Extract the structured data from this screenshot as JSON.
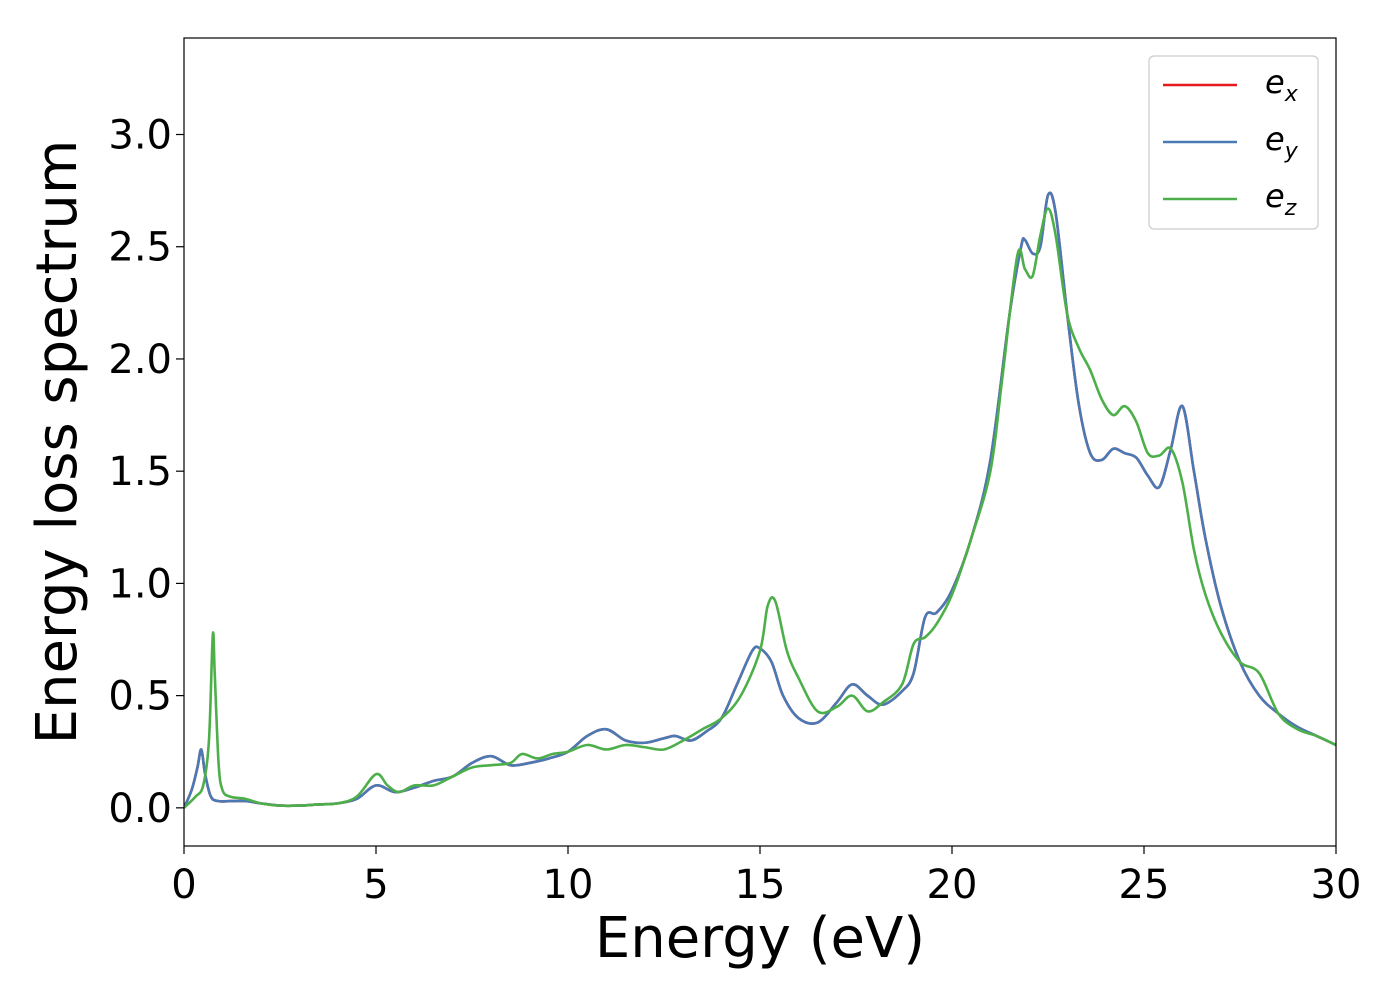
{
  "chart_data": {
    "type": "line",
    "xlabel": "Energy (eV)",
    "ylabel": "Energy loss spectrum",
    "xlim": [
      0,
      30
    ],
    "ylim": [
      -0.17,
      3.43
    ],
    "xticks": [
      0,
      5,
      10,
      15,
      20,
      25,
      30
    ],
    "xtick_labels": [
      "0",
      "5",
      "10",
      "15",
      "20",
      "25",
      "30"
    ],
    "yticks": [
      0.0,
      0.5,
      1.0,
      1.5,
      2.0,
      2.5,
      3.0
    ],
    "ytick_labels": [
      "0.0",
      "0.5",
      "1.0",
      "1.5",
      "2.0",
      "2.5",
      "3.0"
    ],
    "grid": false,
    "legend_position": "top-right",
    "series": [
      {
        "name": "e_x",
        "label_base": "e",
        "label_sub": "x",
        "color": "#e41a1c",
        "x": [
          0,
          0.2,
          0.35,
          0.45,
          0.55,
          0.7,
          0.9,
          1.2,
          1.6,
          2.0,
          2.5,
          3.0,
          3.5,
          4.0,
          4.5,
          5.0,
          5.5,
          6.0,
          6.5,
          7.0,
          7.5,
          8.0,
          8.5,
          9.0,
          9.5,
          10.0,
          10.5,
          11.0,
          11.5,
          12.0,
          12.5,
          12.8,
          13.2,
          13.6,
          14.0,
          14.4,
          14.8,
          15.0,
          15.3,
          15.6,
          16.0,
          16.5,
          17.0,
          17.4,
          17.8,
          18.2,
          18.7,
          19.0,
          19.3,
          19.6,
          20.0,
          20.5,
          21.0,
          21.5,
          21.8,
          21.9,
          22.1,
          22.3,
          22.5,
          22.7,
          23.0,
          23.3,
          23.6,
          23.9,
          24.2,
          24.5,
          24.8,
          25.1,
          25.4,
          25.7,
          26.0,
          26.3,
          26.6,
          27.0,
          27.5,
          28.0,
          28.5,
          29.0,
          29.5,
          30.0
        ],
        "values": [
          0.0,
          0.08,
          0.18,
          0.26,
          0.15,
          0.05,
          0.03,
          0.03,
          0.03,
          0.02,
          0.01,
          0.01,
          0.015,
          0.02,
          0.04,
          0.1,
          0.07,
          0.09,
          0.12,
          0.14,
          0.2,
          0.23,
          0.19,
          0.2,
          0.22,
          0.25,
          0.32,
          0.35,
          0.3,
          0.29,
          0.31,
          0.32,
          0.3,
          0.34,
          0.4,
          0.55,
          0.7,
          0.71,
          0.65,
          0.5,
          0.4,
          0.38,
          0.47,
          0.55,
          0.5,
          0.46,
          0.52,
          0.6,
          0.85,
          0.87,
          0.97,
          1.2,
          1.55,
          2.2,
          2.5,
          2.53,
          2.47,
          2.5,
          2.73,
          2.65,
          2.2,
          1.8,
          1.58,
          1.55,
          1.6,
          1.58,
          1.56,
          1.48,
          1.43,
          1.6,
          1.79,
          1.5,
          1.2,
          0.9,
          0.65,
          0.5,
          0.42,
          0.36,
          0.32,
          0.28
        ]
      },
      {
        "name": "e_y",
        "label_base": "e",
        "label_sub": "y",
        "color": "#4a7ab5",
        "x": [
          0,
          0.2,
          0.35,
          0.45,
          0.55,
          0.7,
          0.9,
          1.2,
          1.6,
          2.0,
          2.5,
          3.0,
          3.5,
          4.0,
          4.5,
          5.0,
          5.5,
          6.0,
          6.5,
          7.0,
          7.5,
          8.0,
          8.5,
          9.0,
          9.5,
          10.0,
          10.5,
          11.0,
          11.5,
          12.0,
          12.5,
          12.8,
          13.2,
          13.6,
          14.0,
          14.4,
          14.8,
          15.0,
          15.3,
          15.6,
          16.0,
          16.5,
          17.0,
          17.4,
          17.8,
          18.2,
          18.7,
          19.0,
          19.3,
          19.6,
          20.0,
          20.5,
          21.0,
          21.5,
          21.8,
          21.9,
          22.1,
          22.3,
          22.5,
          22.7,
          23.0,
          23.3,
          23.6,
          23.9,
          24.2,
          24.5,
          24.8,
          25.1,
          25.4,
          25.7,
          26.0,
          26.3,
          26.6,
          27.0,
          27.5,
          28.0,
          28.5,
          29.0,
          29.5,
          30.0
        ],
        "values": [
          0.0,
          0.08,
          0.18,
          0.26,
          0.15,
          0.05,
          0.03,
          0.03,
          0.03,
          0.02,
          0.01,
          0.01,
          0.015,
          0.02,
          0.04,
          0.1,
          0.07,
          0.09,
          0.12,
          0.14,
          0.2,
          0.23,
          0.19,
          0.2,
          0.22,
          0.25,
          0.32,
          0.35,
          0.3,
          0.29,
          0.31,
          0.32,
          0.3,
          0.34,
          0.4,
          0.55,
          0.7,
          0.71,
          0.65,
          0.5,
          0.4,
          0.38,
          0.47,
          0.55,
          0.5,
          0.46,
          0.52,
          0.6,
          0.85,
          0.87,
          0.97,
          1.2,
          1.55,
          2.2,
          2.5,
          2.53,
          2.47,
          2.5,
          2.73,
          2.65,
          2.2,
          1.8,
          1.58,
          1.55,
          1.6,
          1.58,
          1.56,
          1.48,
          1.43,
          1.6,
          1.79,
          1.5,
          1.2,
          0.9,
          0.65,
          0.5,
          0.42,
          0.36,
          0.32,
          0.28
        ]
      },
      {
        "name": "e_z",
        "label_base": "e",
        "label_sub": "z",
        "color": "#4daf4a",
        "x": [
          0,
          0.3,
          0.5,
          0.65,
          0.75,
          0.8,
          0.9,
          1.0,
          1.2,
          1.6,
          2.0,
          2.5,
          3.0,
          3.5,
          4.0,
          4.5,
          5.0,
          5.3,
          5.6,
          6.0,
          6.5,
          7.0,
          7.5,
          8.0,
          8.5,
          8.8,
          9.2,
          9.6,
          10.0,
          10.5,
          11.0,
          11.5,
          12.0,
          12.5,
          13.0,
          13.5,
          14.0,
          14.5,
          15.0,
          15.2,
          15.4,
          15.7,
          16.0,
          16.5,
          17.0,
          17.4,
          17.8,
          18.2,
          18.7,
          19.0,
          19.3,
          19.6,
          20.0,
          20.5,
          21.0,
          21.3,
          21.7,
          21.9,
          22.1,
          22.3,
          22.5,
          22.7,
          23.0,
          23.3,
          23.6,
          23.9,
          24.2,
          24.5,
          24.8,
          25.1,
          25.4,
          25.7,
          26.0,
          26.3,
          26.6,
          27.0,
          27.5,
          28.0,
          28.5,
          29.0,
          29.5,
          30.0
        ],
        "values": [
          0.0,
          0.05,
          0.1,
          0.3,
          0.77,
          0.6,
          0.2,
          0.08,
          0.05,
          0.04,
          0.02,
          0.01,
          0.01,
          0.015,
          0.02,
          0.05,
          0.15,
          0.1,
          0.07,
          0.1,
          0.1,
          0.14,
          0.18,
          0.19,
          0.2,
          0.24,
          0.22,
          0.24,
          0.25,
          0.28,
          0.26,
          0.28,
          0.27,
          0.26,
          0.3,
          0.35,
          0.4,
          0.5,
          0.7,
          0.9,
          0.92,
          0.7,
          0.58,
          0.43,
          0.45,
          0.5,
          0.43,
          0.47,
          0.55,
          0.73,
          0.76,
          0.82,
          0.95,
          1.2,
          1.5,
          1.9,
          2.46,
          2.4,
          2.37,
          2.55,
          2.67,
          2.55,
          2.2,
          2.05,
          1.95,
          1.82,
          1.75,
          1.79,
          1.72,
          1.58,
          1.57,
          1.6,
          1.45,
          1.15,
          0.95,
          0.78,
          0.65,
          0.6,
          0.42,
          0.35,
          0.32,
          0.28
        ]
      }
    ]
  }
}
